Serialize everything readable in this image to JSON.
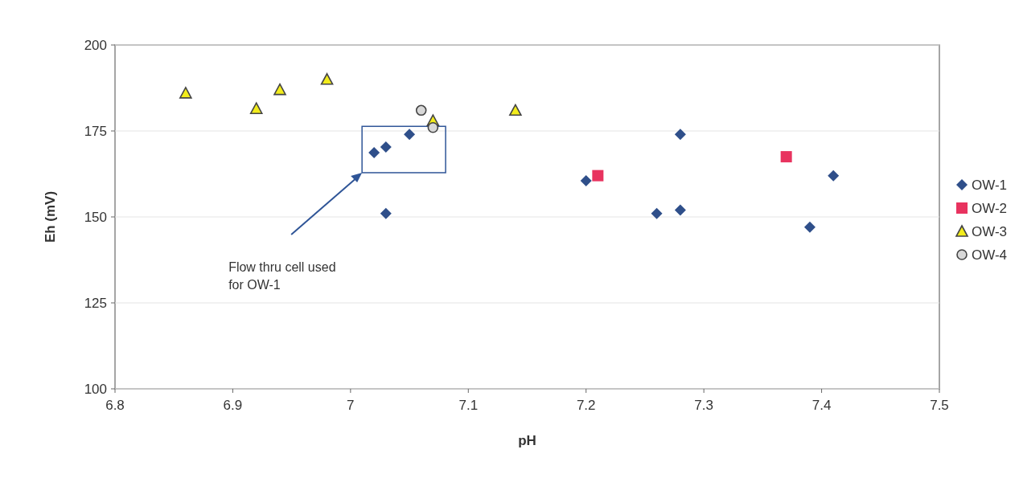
{
  "chart_data": {
    "type": "scatter",
    "xlabel": "pH",
    "ylabel": "Eh (mV)",
    "xlim": [
      6.8,
      7.5
    ],
    "xticks": [
      6.8,
      6.9,
      7,
      7.1,
      7.2,
      7.3,
      7.4,
      7.5
    ],
    "ylim": [
      100,
      200
    ],
    "yticks": [
      100,
      125,
      150,
      175,
      200
    ],
    "grid": "y",
    "legend": "right",
    "annotations": [
      "Flow thru cell used for OW-1"
    ],
    "series": [
      {
        "name": "OW-1",
        "color": "#2f4f8a",
        "marker": "diamond",
        "x": [
          7.02,
          7.03,
          7.05,
          7.03,
          7.2,
          7.26,
          7.28,
          7.28,
          7.39,
          7.41
        ],
        "values": [
          168.7,
          170.3,
          174,
          151,
          160.5,
          151,
          174,
          152,
          147,
          162
        ]
      },
      {
        "name": "OW-2",
        "color": "#e8335f",
        "marker": "square",
        "x": [
          7.21,
          7.37
        ],
        "values": [
          162,
          167.5
        ]
      },
      {
        "name": "OW-3",
        "color": "#f2ec1c",
        "marker": "triangle",
        "x": [
          6.86,
          6.92,
          6.94,
          6.98,
          7.07,
          7.14
        ],
        "values": [
          186,
          181.5,
          187,
          190,
          178,
          181
        ]
      },
      {
        "name": "OW-4",
        "color": "#d8d8d8",
        "marker": "circle",
        "x": [
          7.06,
          7.07
        ],
        "values": [
          181,
          176
        ]
      }
    ]
  }
}
